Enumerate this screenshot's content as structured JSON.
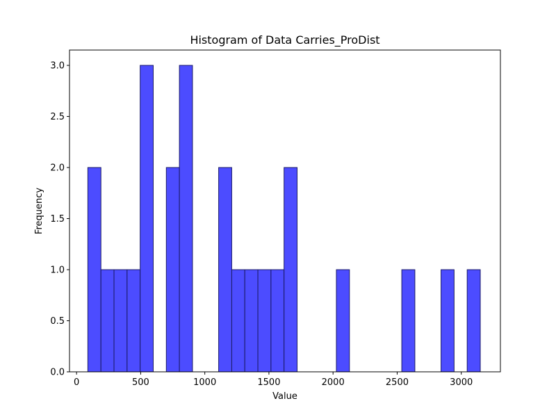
{
  "chart_data": {
    "type": "bar",
    "title": "Histogram of Data Carries_ProDist",
    "xlabel": "Value",
    "ylabel": "Frequency",
    "xlim": [
      -55,
      3305
    ],
    "ylim": [
      0,
      3.15
    ],
    "xticks": [
      0,
      500,
      1000,
      1500,
      2000,
      2500,
      3000
    ],
    "yticks": [
      0.0,
      0.5,
      1.0,
      1.5,
      2.0,
      2.5,
      3.0
    ],
    "ytick_labels": [
      "0.0",
      "0.5",
      "1.0",
      "1.5",
      "2.0",
      "2.5",
      "3.0"
    ],
    "grid": false,
    "bar_color": "#4c4cff",
    "edge_color": "#1a1a66",
    "bins": [
      {
        "x0": 88,
        "x1": 190,
        "count": 2
      },
      {
        "x0": 190,
        "x1": 292,
        "count": 1
      },
      {
        "x0": 292,
        "x1": 394,
        "count": 1
      },
      {
        "x0": 394,
        "x1": 496,
        "count": 1
      },
      {
        "x0": 496,
        "x1": 598,
        "count": 3
      },
      {
        "x0": 700,
        "x1": 802,
        "count": 2
      },
      {
        "x0": 802,
        "x1": 904,
        "count": 3
      },
      {
        "x0": 1108,
        "x1": 1210,
        "count": 2
      },
      {
        "x0": 1210,
        "x1": 1312,
        "count": 1
      },
      {
        "x0": 1312,
        "x1": 1414,
        "count": 1
      },
      {
        "x0": 1414,
        "x1": 1516,
        "count": 1
      },
      {
        "x0": 1516,
        "x1": 1618,
        "count": 1
      },
      {
        "x0": 1618,
        "x1": 1720,
        "count": 2
      },
      {
        "x0": 2026,
        "x1": 2128,
        "count": 1
      },
      {
        "x0": 2536,
        "x1": 2638,
        "count": 1
      },
      {
        "x0": 2842,
        "x1": 2944,
        "count": 1
      },
      {
        "x0": 3046,
        "x1": 3148,
        "count": 1
      }
    ]
  }
}
